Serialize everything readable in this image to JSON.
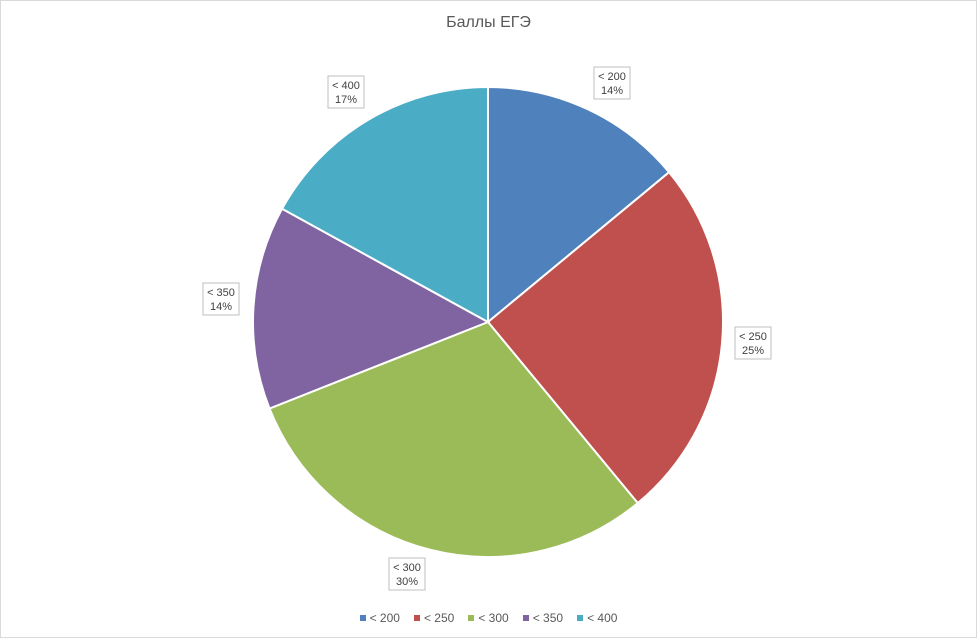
{
  "chart_data": {
    "type": "pie",
    "title": "Баллы ЕГЭ",
    "categories": [
      "< 200",
      "< 250",
      "< 300",
      "< 350",
      "< 400"
    ],
    "values": [
      14,
      25,
      30,
      14,
      17
    ],
    "percent_labels": [
      "14%",
      "25%",
      "30%",
      "14%",
      "17%"
    ],
    "colors": [
      "#4F81BD",
      "#C0504D",
      "#9BBB59",
      "#8064A2",
      "#4BACC6"
    ],
    "legend_position": "bottom",
    "data_labels": "outside-callout"
  }
}
